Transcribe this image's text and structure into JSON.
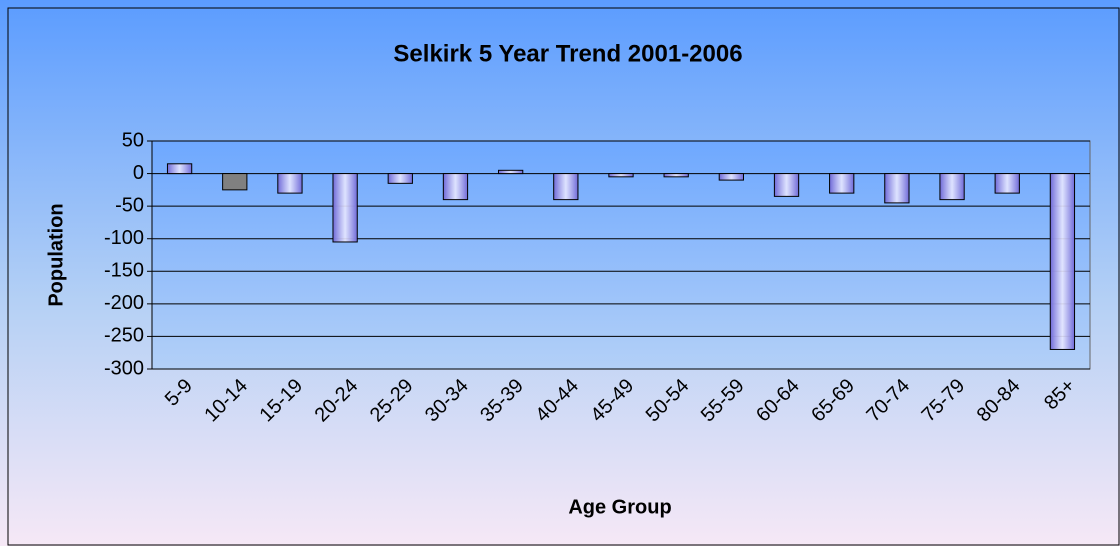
{
  "chart_data": {
    "type": "bar",
    "title": "Selkirk 5 Year Trend 2001-2006",
    "x_label": "Age Group",
    "y_label": "Population",
    "categories": [
      "5-9",
      "10-14",
      "15-19",
      "20-24",
      "25-29",
      "30-34",
      "35-39",
      "40-44",
      "45-49",
      "50-54",
      "55-59",
      "60-64",
      "65-69",
      "70-74",
      "75-79",
      "80-84",
      "85+"
    ],
    "values": [
      15,
      -25,
      -30,
      -105,
      -15,
      -40,
      5,
      -40,
      -5,
      -5,
      -10,
      -35,
      -30,
      -45,
      -40,
      -30,
      -270
    ],
    "colors": [
      "#6f6ad8",
      "#808080",
      "#6f6ad8",
      "#6f6ad8",
      "#6f6ad8",
      "#6f6ad8",
      "#6f6ad8",
      "#6f6ad8",
      "#6f6ad8",
      "#6f6ad8",
      "#6f6ad8",
      "#6f6ad8",
      "#6f6ad8",
      "#6f6ad8",
      "#6f6ad8",
      "#6f6ad8",
      "#6f6ad8"
    ],
    "ylim": [
      -300,
      50
    ],
    "yticks": [
      50,
      0,
      -50,
      -100,
      -150,
      -200,
      -250,
      -300
    ],
    "grid": true
  }
}
